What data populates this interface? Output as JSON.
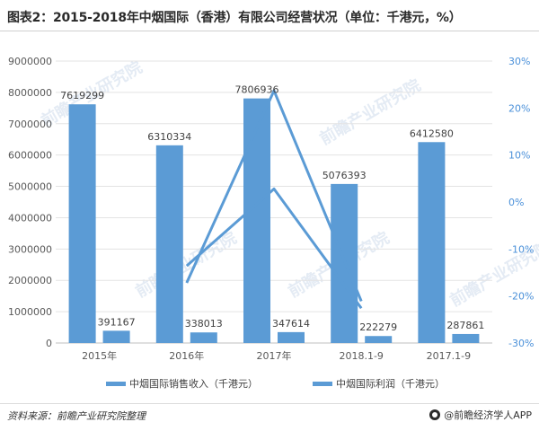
{
  "title": "图表2：2015-2018年中烟国际（香港）有限公司经营状况（单位：千港元，%）",
  "source": "资料来源：前瞻产业研究院整理",
  "brand": "@前瞻经济学人APP",
  "watermark": "前瞻产业研究院",
  "colors": {
    "bar": "#5b9bd5",
    "line": "#5b9bd5",
    "axis_text": "#595959",
    "right_axis_text": "#4a90d9"
  },
  "chart_data": {
    "type": "bar",
    "categories": [
      "2015年",
      "2016年",
      "2017年",
      "2018.1-9",
      "2017.1-9"
    ],
    "series": [
      {
        "name": "中烟国际销售收入（千港元）",
        "values": [
          7619299,
          6310334,
          7806936,
          5076393,
          6412580
        ]
      },
      {
        "name": "中烟国际利润（千港元）",
        "values": [
          391167,
          338013,
          347614,
          222279,
          287861
        ]
      }
    ],
    "line_series": [
      {
        "values": [
          null,
          -17.2,
          23.7,
          -21.1,
          null
        ],
        "axis": "right"
      },
      {
        "values": [
          null,
          -13.6,
          2.8,
          -22.6,
          null
        ],
        "axis": "right"
      }
    ],
    "ylim": [
      0,
      9000000
    ],
    "yticks": [
      "0",
      "1000000",
      "2000000",
      "3000000",
      "4000000",
      "5000000",
      "6000000",
      "7000000",
      "8000000",
      "9000000"
    ],
    "y2lim": [
      -30,
      30
    ],
    "y2ticks": [
      "-30%",
      "-20%",
      "-10%",
      "0%",
      "10%",
      "20%",
      "30%"
    ],
    "legend_position": "bottom",
    "grid": true
  }
}
